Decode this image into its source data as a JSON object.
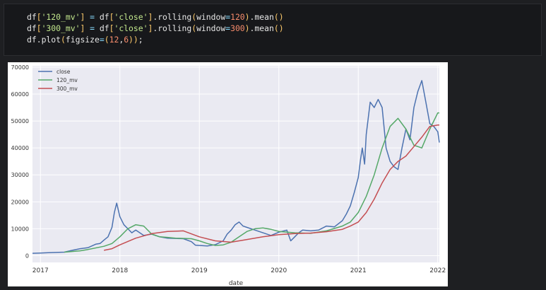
{
  "code_cell": {
    "lines": [
      "df['120_mv'] = df['close'].rolling(window=120).mean()",
      "df['300_mv'] = df['close'].rolling(window=300).mean()",
      "df.plot(figsize=(12,6));"
    ]
  },
  "chart_data": {
    "type": "line",
    "xlabel": "date",
    "ylabel": "",
    "title": "",
    "x_ticks": [
      "2017",
      "2018",
      "2019",
      "2020",
      "2021",
      "2022"
    ],
    "xlim": [
      2016.9,
      2022.02
    ],
    "ylim": [
      -2500,
      70500
    ],
    "y_ticks": [
      "0",
      "10000",
      "20000",
      "30000",
      "40000",
      "50000",
      "60000",
      "70000"
    ],
    "legend_position": "top-left",
    "grid": true,
    "series": [
      {
        "name": "close",
        "color": "#4c72b0",
        "x": [
          2016.9,
          2017.0,
          2017.1,
          2017.2,
          2017.3,
          2017.4,
          2017.5,
          2017.6,
          2017.7,
          2017.75,
          2017.8,
          2017.85,
          2017.9,
          2017.93,
          2017.96,
          2018.0,
          2018.05,
          2018.1,
          2018.15,
          2018.2,
          2018.3,
          2018.4,
          2018.5,
          2018.6,
          2018.7,
          2018.8,
          2018.9,
          2018.95,
          2019.0,
          2019.1,
          2019.2,
          2019.3,
          2019.35,
          2019.4,
          2019.45,
          2019.5,
          2019.55,
          2019.6,
          2019.7,
          2019.8,
          2019.9,
          2020.0,
          2020.1,
          2020.15,
          2020.2,
          2020.25,
          2020.3,
          2020.4,
          2020.5,
          2020.6,
          2020.7,
          2020.8,
          2020.85,
          2020.9,
          2020.95,
          2021.0,
          2021.03,
          2021.05,
          2021.08,
          2021.1,
          2021.15,
          2021.2,
          2021.25,
          2021.3,
          2021.35,
          2021.4,
          2021.45,
          2021.5,
          2021.55,
          2021.6,
          2021.65,
          2021.7,
          2021.75,
          2021.8,
          2021.85,
          2021.9,
          2021.95,
          2022.0,
          2022.02
        ],
        "values": [
          900,
          1000,
          1100,
          1200,
          1300,
          2000,
          2600,
          3000,
          4300,
          4500,
          5800,
          7000,
          10500,
          16000,
          19500,
          14500,
          11500,
          10000,
          8500,
          9500,
          7500,
          8000,
          7000,
          6500,
          6400,
          6300,
          5200,
          3900,
          3800,
          3600,
          4100,
          5500,
          8000,
          9500,
          11500,
          12500,
          11000,
          10500,
          9500,
          8500,
          7500,
          8700,
          9500,
          5500,
          7000,
          8500,
          9500,
          9200,
          9500,
          11000,
          10700,
          13000,
          15500,
          18500,
          23500,
          29000,
          36000,
          40000,
          34000,
          45000,
          57000,
          55000,
          58000,
          55000,
          40000,
          35000,
          33000,
          32000,
          40000,
          47000,
          43000,
          55000,
          61000,
          65000,
          57000,
          49000,
          48000,
          46000,
          42000
        ]
      },
      {
        "name": "120_mv",
        "color": "#55a868",
        "x": [
          2017.3,
          2017.5,
          2017.6,
          2017.8,
          2017.9,
          2018.0,
          2018.1,
          2018.2,
          2018.3,
          2018.4,
          2018.5,
          2018.6,
          2018.7,
          2018.9,
          2019.0,
          2019.1,
          2019.2,
          2019.3,
          2019.4,
          2019.5,
          2019.6,
          2019.7,
          2019.8,
          2019.9,
          2020.0,
          2020.2,
          2020.4,
          2020.6,
          2020.8,
          2020.9,
          2021.0,
          2021.1,
          2021.2,
          2021.3,
          2021.4,
          2021.5,
          2021.6,
          2021.7,
          2021.8,
          2021.9,
          2022.0,
          2022.02
        ],
        "values": [
          1300,
          1800,
          2300,
          3500,
          4500,
          7000,
          10000,
          11500,
          11000,
          8000,
          7000,
          6800,
          6500,
          6300,
          5500,
          4500,
          3800,
          4000,
          5000,
          7000,
          9000,
          10000,
          10300,
          9800,
          9000,
          8500,
          8300,
          9200,
          11000,
          12500,
          16000,
          22000,
          30000,
          40000,
          48000,
          51000,
          47000,
          41000,
          40000,
          47000,
          53000,
          53000
        ]
      },
      {
        "name": "300_mv",
        "color": "#c44e52",
        "x": [
          2017.8,
          2017.9,
          2018.0,
          2018.2,
          2018.4,
          2018.6,
          2018.8,
          2019.0,
          2019.2,
          2019.4,
          2019.6,
          2019.8,
          2020.0,
          2020.2,
          2020.4,
          2020.6,
          2020.8,
          2020.9,
          2021.0,
          2021.1,
          2021.2,
          2021.3,
          2021.4,
          2021.5,
          2021.6,
          2021.7,
          2021.8,
          2021.9,
          2022.0,
          2022.02
        ],
        "values": [
          2000,
          2600,
          4000,
          6500,
          8200,
          9000,
          9200,
          7000,
          5500,
          5000,
          6000,
          7000,
          7800,
          8200,
          8400,
          8900,
          9800,
          11000,
          12500,
          16000,
          21000,
          27000,
          32000,
          35000,
          37000,
          40500,
          44000,
          48000,
          48500,
          48500
        ]
      }
    ]
  }
}
